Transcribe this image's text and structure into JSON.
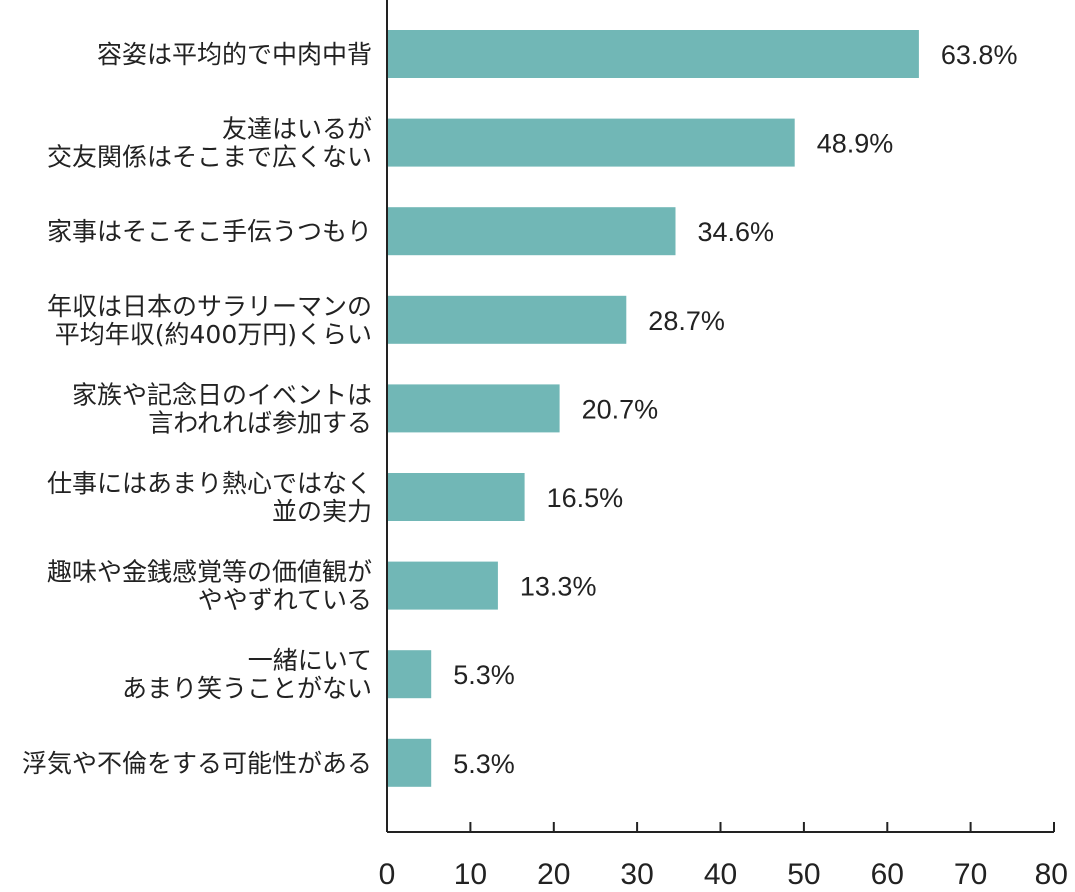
{
  "chart_data": {
    "type": "bar",
    "orientation": "horizontal",
    "categories": [
      [
        "容姿は平均的で中肉中背"
      ],
      [
        "友達はいるが",
        "交友関係はそこまで広くない"
      ],
      [
        "家事はそこそこ手伝うつもり"
      ],
      [
        "年収は日本のサラリーマンの",
        "平均年収(約400万円)くらい"
      ],
      [
        "家族や記念日のイベントは",
        "言われれば参加する"
      ],
      [
        "仕事にはあまり熱心ではなく",
        "並の実力"
      ],
      [
        "趣味や金銭感覚等の価値観が",
        "ややずれている"
      ],
      [
        "一緒にいて",
        "あまり笑うことがない"
      ],
      [
        "浮気や不倫をする可能性がある"
      ]
    ],
    "values": [
      63.8,
      48.9,
      34.6,
      28.7,
      20.7,
      16.5,
      13.3,
      5.3,
      5.3
    ],
    "value_labels": [
      "63.8%",
      "48.9%",
      "34.6%",
      "28.7%",
      "20.7%",
      "16.5%",
      "13.3%",
      "5.3%",
      "5.3%"
    ],
    "xlim": [
      0,
      80
    ],
    "xticks": [
      0,
      10,
      20,
      30,
      40,
      50,
      60,
      70,
      80
    ],
    "title": "",
    "xlabel": "",
    "ylabel": "",
    "grid": false,
    "legend": "none",
    "bar_color": "#71b7b6"
  }
}
